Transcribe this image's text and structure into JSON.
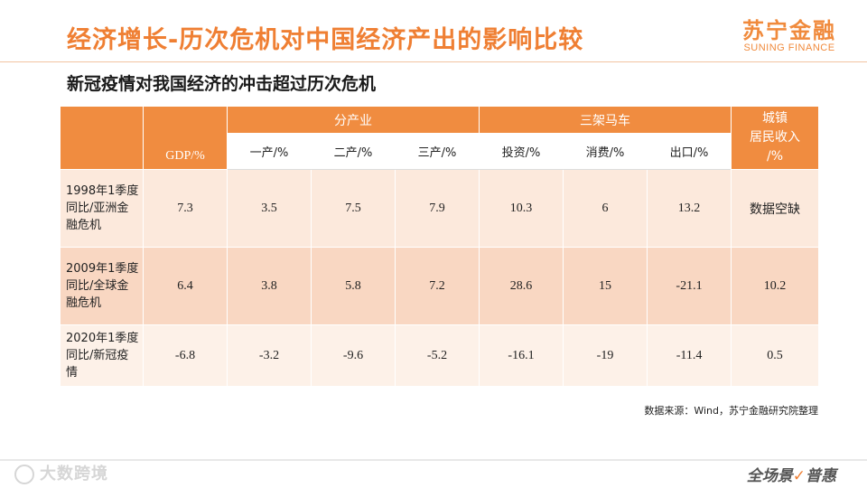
{
  "header": {
    "title": "经济增长-历次危机对中国经济产出的影响比较",
    "brand_cn": "苏宁金融",
    "brand_en": "SUNING FINANCE"
  },
  "subtitle": "新冠疫情对我国经济的冲击超过历次危机",
  "table": {
    "group_headers": {
      "by_industry": "分产业",
      "troika": "三架马车",
      "income_line1": "城镇",
      "income_line2": "居民收入",
      "income_line3": "/%"
    },
    "gdp_header": "GDP/%",
    "sub_headers": [
      "一产/%",
      "二产/%",
      "三产/%",
      "投资/%",
      "消费/%",
      "出口/%"
    ],
    "rows": [
      {
        "label": "1998年1季度同比/亚洲金融危机",
        "gdp": "7.3",
        "values": [
          "3.5",
          "7.5",
          "7.9",
          "10.3",
          "6",
          "13.2"
        ],
        "income": "数据空缺"
      },
      {
        "label": "2009年1季度同比/全球金融危机",
        "gdp": "6.4",
        "values": [
          "3.8",
          "5.8",
          "7.2",
          "28.6",
          "15",
          "-21.1"
        ],
        "income": "10.2"
      },
      {
        "label": "2020年1季度同比/新冠疫情",
        "gdp": "-6.8",
        "values": [
          "-3.2",
          "-9.6",
          "-5.2",
          "-16.1",
          "-19",
          "-11.4"
        ],
        "income": "0.5"
      }
    ]
  },
  "source_note": "数据来源：Wind，苏宁金融研究院整理",
  "footer": {
    "watermark": "大数跨境",
    "slogan_part1": "全场景",
    "slogan_check": "✓",
    "slogan_part2": "普惠"
  },
  "colors": {
    "accent": "#ef7f33",
    "header_fill": "#f08c40",
    "row_light": "#fce9dc",
    "row_dark": "#f9d7c2",
    "row_pale": "#fdf1e8"
  }
}
